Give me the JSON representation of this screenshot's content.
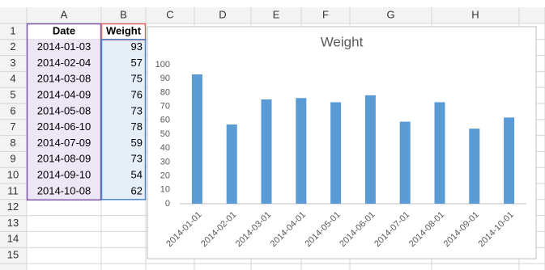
{
  "sheet": {
    "columns": [
      "A",
      "B",
      "C",
      "D",
      "E",
      "F",
      "G",
      "H"
    ],
    "rows": [
      1,
      2,
      3,
      4,
      5,
      6,
      7,
      8,
      9,
      10,
      11,
      12,
      13,
      14,
      15
    ],
    "cells": [
      [
        "Date",
        "Weight"
      ],
      [
        "2014-01-03",
        93
      ],
      [
        "2014-02-04",
        57
      ],
      [
        "2014-03-08",
        75
      ],
      [
        "2014-04-09",
        76
      ],
      [
        "2014-05-08",
        73
      ],
      [
        "2014-06-10",
        78
      ],
      [
        "2014-07-09",
        59
      ],
      [
        "2014-08-09",
        73
      ],
      [
        "2014-09-10",
        54
      ],
      [
        "2014-10-08",
        62
      ]
    ]
  },
  "chart_data": {
    "type": "bar",
    "title": "Weight",
    "categories": [
      "2014-01-01",
      "2014-02-01",
      "2014-03-01",
      "2014-04-01",
      "2014-05-01",
      "2014-06-01",
      "2014-07-01",
      "2014-08-01",
      "2014-09-01",
      "2014-10-01"
    ],
    "values": [
      93,
      57,
      75,
      76,
      73,
      78,
      59,
      73,
      54,
      62
    ],
    "color": "#5b9bd5",
    "ylim": [
      0,
      100
    ],
    "yticks": [
      0,
      10,
      20,
      30,
      40,
      50,
      60,
      70,
      80,
      90,
      100
    ],
    "grid": false
  }
}
